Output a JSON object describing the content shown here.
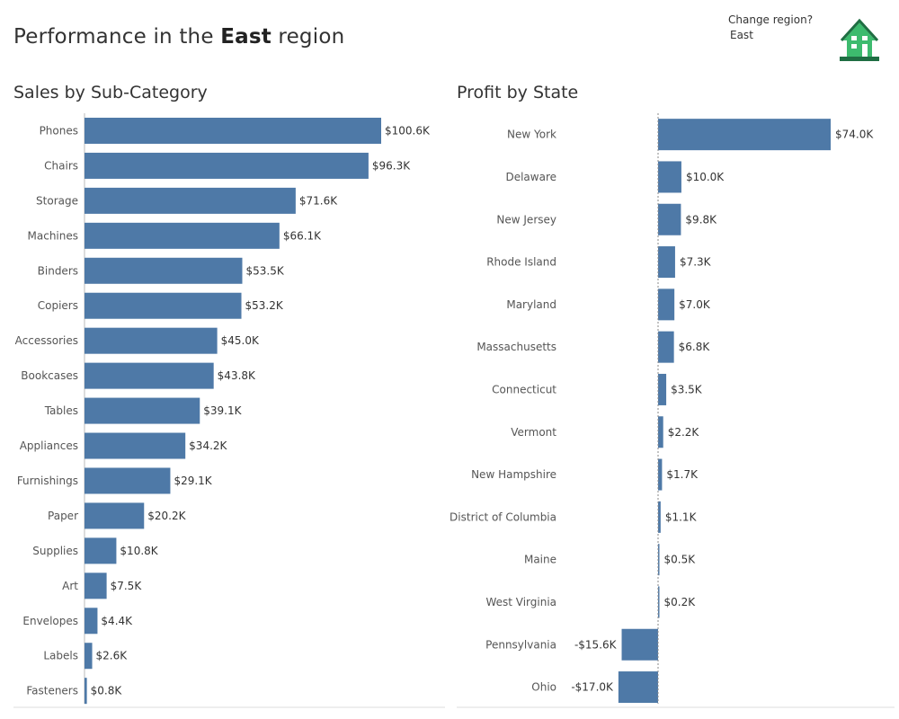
{
  "header": {
    "title_prefix": "Performance in the ",
    "title_region": "East",
    "title_suffix": " region",
    "change_region_label": "Change region?",
    "region_value": "East",
    "home_icon": "home-icon"
  },
  "colors": {
    "bar": "#4e79a7",
    "home_icon": "#3dbb6e",
    "home_icon_dark": "#1f6e43"
  },
  "chart_data": [
    {
      "type": "bar",
      "orientation": "horizontal",
      "title": "Sales by Sub-Category",
      "categories": [
        "Phones",
        "Chairs",
        "Storage",
        "Machines",
        "Binders",
        "Copiers",
        "Accessories",
        "Bookcases",
        "Tables",
        "Appliances",
        "Furnishings",
        "Paper",
        "Supplies",
        "Art",
        "Envelopes",
        "Labels",
        "Fasteners"
      ],
      "values": [
        100.6,
        96.3,
        71.6,
        66.1,
        53.5,
        53.2,
        45.0,
        43.8,
        39.1,
        34.2,
        29.1,
        20.2,
        10.8,
        7.5,
        4.4,
        2.6,
        0.8
      ],
      "labels": [
        "$100.6K",
        "$96.3K",
        "$71.6K",
        "$66.1K",
        "$53.5K",
        "$53.2K",
        "$45.0K",
        "$43.8K",
        "$39.1K",
        "$34.2K",
        "$29.1K",
        "$20.2K",
        "$10.8K",
        "$7.5K",
        "$4.4K",
        "$2.6K",
        "$0.8K"
      ],
      "unit": "thousands USD",
      "xlim": [
        0,
        100.6
      ],
      "grid": false
    },
    {
      "type": "bar",
      "orientation": "horizontal",
      "title": "Profit by State",
      "categories": [
        "New York",
        "Delaware",
        "New Jersey",
        "Rhode Island",
        "Maryland",
        "Massachusetts",
        "Connecticut",
        "Vermont",
        "New Hampshire",
        "District of Columbia",
        "Maine",
        "West Virginia",
        "Pennsylvania",
        "Ohio"
      ],
      "values": [
        74.0,
        10.0,
        9.8,
        7.3,
        7.0,
        6.8,
        3.5,
        2.2,
        1.7,
        1.1,
        0.5,
        0.2,
        -15.6,
        -17.0
      ],
      "labels": [
        "$74.0K",
        "$10.0K",
        "$9.8K",
        "$7.3K",
        "$7.0K",
        "$6.8K",
        "$3.5K",
        "$2.2K",
        "$1.7K",
        "$1.1K",
        "$0.5K",
        "$0.2K",
        "-$15.6K",
        "-$17.0K"
      ],
      "unit": "thousands USD",
      "xlim": [
        -17.0,
        74.0
      ],
      "zero_line": "dashed",
      "grid": false
    }
  ]
}
